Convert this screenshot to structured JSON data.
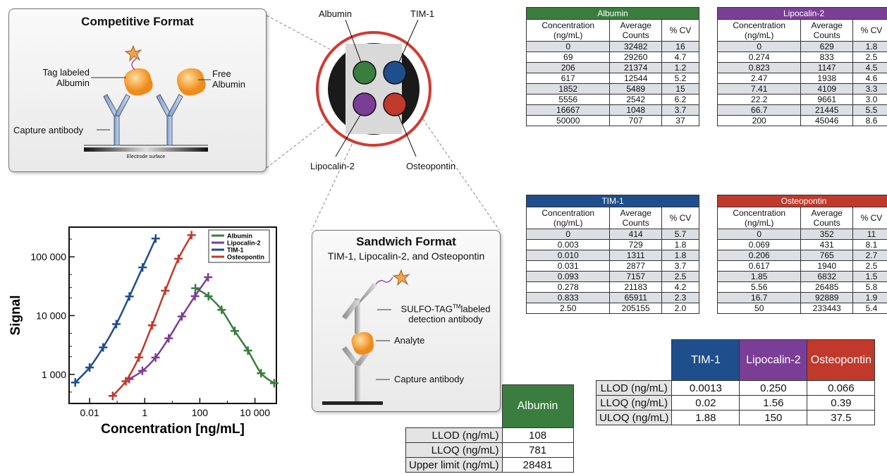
{
  "competitive": {
    "title": "Competitive Format",
    "tag_label": "Tag labeled Albumin",
    "free_label": "Free Albumin",
    "capture_label": "Capture antibody",
    "electrode_label": "Electrode surface"
  },
  "spots": {
    "albumin": "Albumin",
    "tim1": "TIM-1",
    "lipocalin2": "Lipocalin-2",
    "osteopontin": "Osteopontin"
  },
  "sandwich": {
    "title": "Sandwich Format",
    "subtitle": "TIM-1, Lipocalin-2, and Osteopontin",
    "detection_label_1": "SULFO-TAG",
    "detection_label_tm": "TM",
    "detection_label_2": "labeled",
    "detection_label_3": "detection antibody",
    "analyte_label": "Analyte",
    "capture_label": "Capture antibody"
  },
  "colors": {
    "albumin": "#3a7d3e",
    "lipocalin2": "#7b3e97",
    "tim1": "#1f4e8c",
    "osteopontin": "#c0392b",
    "ring": "#d23a32"
  },
  "tables": {
    "col_conc_1": "Concentration",
    "col_conc_2": "(ng/mL)",
    "col_avg_1": "Average",
    "col_avg_2": "Counts",
    "col_cv": "% CV",
    "albumin": {
      "title": "Albumin",
      "rows": [
        [
          "0",
          "32482",
          "16"
        ],
        [
          "69",
          "29260",
          "4.7"
        ],
        [
          "206",
          "21374",
          "1.2"
        ],
        [
          "617",
          "12544",
          "5.2"
        ],
        [
          "1852",
          "5489",
          "15"
        ],
        [
          "5556",
          "2542",
          "6.2"
        ],
        [
          "16667",
          "1048",
          "3.7"
        ],
        [
          "50000",
          "707",
          "37"
        ]
      ]
    },
    "lipocalin2": {
      "title": "Lipocalin-2",
      "rows": [
        [
          "0",
          "629",
          "1.8"
        ],
        [
          "0.274",
          "833",
          "2.5"
        ],
        [
          "0.823",
          "1147",
          "4.5"
        ],
        [
          "2.47",
          "1938",
          "4.6"
        ],
        [
          "7.41",
          "4109",
          "3.3"
        ],
        [
          "22.2",
          "9661",
          "3.0"
        ],
        [
          "66.7",
          "21445",
          "5.5"
        ],
        [
          "200",
          "45046",
          "8.6"
        ]
      ]
    },
    "tim1": {
      "title": "TIM-1",
      "rows": [
        [
          "0",
          "414",
          "5.7"
        ],
        [
          "0.003",
          "729",
          "1.8"
        ],
        [
          "0.010",
          "1311",
          "1.8"
        ],
        [
          "0.031",
          "2877",
          "3.7"
        ],
        [
          "0.093",
          "7157",
          "2.5"
        ],
        [
          "0.278",
          "21183",
          "4.2"
        ],
        [
          "0.833",
          "65911",
          "2.3"
        ],
        [
          "2.50",
          "205155",
          "2.0"
        ]
      ]
    },
    "osteopontin": {
      "title": "Osteopontin",
      "rows": [
        [
          "0",
          "352",
          "11"
        ],
        [
          "0.069",
          "431",
          "8.1"
        ],
        [
          "0.206",
          "765",
          "2.7"
        ],
        [
          "0.617",
          "1940",
          "2.5"
        ],
        [
          "1.85",
          "6832",
          "1.5"
        ],
        [
          "5.56",
          "26485",
          "5.8"
        ],
        [
          "16.7",
          "92889",
          "1.9"
        ],
        [
          "50",
          "233443",
          "5.4"
        ]
      ]
    }
  },
  "limits_albumin": {
    "header": "Albumin",
    "rows": [
      [
        "LLOD (ng/mL)",
        "108"
      ],
      [
        "LLOQ (ng/mL)",
        "781"
      ],
      [
        "Upper limit (ng/mL)",
        "28481"
      ]
    ]
  },
  "limits_multi": {
    "headers": [
      "TIM-1",
      "Lipocalin-2",
      "Osteopontin"
    ],
    "rows": [
      [
        "LLOD (ng/mL)",
        "0.0013",
        "0.250",
        "0.066"
      ],
      [
        "LLOQ (ng/mL)",
        "0.02",
        "1.56",
        "0.39"
      ],
      [
        "ULOQ (ng/mL)",
        "1.88",
        "150",
        "37.5"
      ]
    ]
  },
  "chart_data": {
    "type": "line",
    "xlabel": "Concentration  [ng/mL]",
    "ylabel": "Signal",
    "x_scale": "log",
    "y_scale": "log",
    "xticks": [
      "0.01",
      "1",
      "100",
      "10 000"
    ],
    "yticks": [
      "1 000",
      "10 000",
      "100 000"
    ],
    "xlim": [
      0.0018,
      60000
    ],
    "ylim": [
      320,
      320000
    ],
    "legend_position": "top-right",
    "series": [
      {
        "name": "Albumin",
        "color": "#3a7d3e",
        "x": [
          69,
          206,
          617,
          1852,
          5556,
          16667,
          50000
        ],
        "y": [
          29260,
          21374,
          12544,
          5489,
          2542,
          1048,
          707
        ]
      },
      {
        "name": "Lipocalin-2",
        "color": "#7b3e97",
        "x": [
          0.274,
          0.823,
          2.47,
          7.41,
          22.2,
          66.7,
          200
        ],
        "y": [
          833,
          1147,
          1938,
          4109,
          9661,
          21445,
          45046
        ]
      },
      {
        "name": "TIM-1",
        "color": "#1f4e8c",
        "x": [
          0.003,
          0.01,
          0.031,
          0.093,
          0.278,
          0.833,
          2.5
        ],
        "y": [
          729,
          1311,
          2877,
          7157,
          21183,
          65911,
          205155
        ]
      },
      {
        "name": "Osteopontin",
        "color": "#c0392b",
        "x": [
          0.069,
          0.206,
          0.617,
          1.85,
          5.56,
          16.7,
          50
        ],
        "y": [
          431,
          765,
          1940,
          6832,
          26485,
          92889,
          233443
        ]
      }
    ]
  }
}
